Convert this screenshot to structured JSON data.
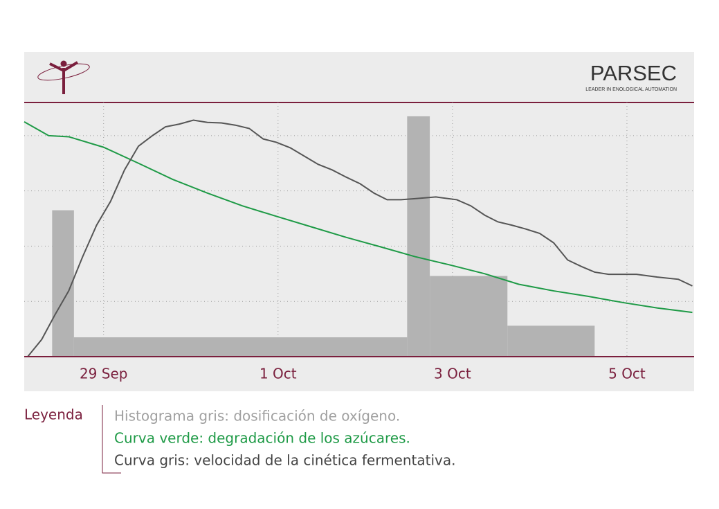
{
  "header": {
    "brand": "PARSEC",
    "tagline": "LEADER IN ENOLOGICAL AUTOMATION"
  },
  "chart_data": {
    "type": "line",
    "xlim": [
      -0.91,
      6.77
    ],
    "xticks": [
      {
        "value": 0,
        "label": "29 Sep"
      },
      {
        "value": 2,
        "label": "1 Oct"
      },
      {
        "value": 4,
        "label": "3 Oct"
      },
      {
        "value": 6,
        "label": "5 Oct"
      }
    ],
    "ylim": [
      0,
      4.6
    ],
    "ygrid": [
      1,
      2,
      3,
      4
    ],
    "legend_title": "Leyenda",
    "series": [
      {
        "name": "Histograma gris: dosificación de oxígeno.",
        "type": "histogram",
        "color": "#b3b3b3",
        "bins": [
          -0.59,
          -0.34,
          3.48,
          3.74,
          4.63,
          5.63
        ],
        "values": [
          2.65,
          0.35,
          4.35,
          1.46,
          0.56
        ]
      },
      {
        "name": "Curva verde: degradación de los azúcares.",
        "type": "line",
        "color": "#1e9a46",
        "x": [
          -0.91,
          -0.63,
          -0.4,
          0,
          0.4,
          0.79,
          1.19,
          1.59,
          1.98,
          2.38,
          2.78,
          3.17,
          3.57,
          3.97,
          4.37,
          4.76,
          5.16,
          5.56,
          5.95,
          6.35,
          6.75
        ],
        "values": [
          4.25,
          4.0,
          3.98,
          3.79,
          3.5,
          3.21,
          2.96,
          2.73,
          2.54,
          2.35,
          2.16,
          1.99,
          1.81,
          1.66,
          1.5,
          1.31,
          1.19,
          1.09,
          0.98,
          0.88,
          0.8
        ]
      },
      {
        "name": "Curva gris: velocidad de la cinética fermentativa.",
        "type": "line",
        "color": "#555555",
        "x": [
          -0.87,
          -0.71,
          -0.56,
          -0.4,
          -0.24,
          -0.08,
          0.08,
          0.24,
          0.4,
          0.56,
          0.71,
          0.87,
          1.03,
          1.19,
          1.35,
          1.51,
          1.67,
          1.83,
          1.98,
          2.14,
          2.3,
          2.46,
          2.62,
          2.78,
          2.94,
          3.1,
          3.25,
          3.41,
          3.57,
          3.81,
          4.05,
          4.21,
          4.37,
          4.52,
          4.68,
          4.84,
          5.0,
          5.16,
          5.32,
          5.48,
          5.63,
          5.79,
          6.11,
          6.35,
          6.59,
          6.75
        ],
        "values": [
          0,
          0.31,
          0.75,
          1.19,
          1.81,
          2.38,
          2.81,
          3.38,
          3.81,
          4.0,
          4.16,
          4.21,
          4.28,
          4.24,
          4.23,
          4.19,
          4.13,
          3.94,
          3.88,
          3.78,
          3.63,
          3.48,
          3.38,
          3.25,
          3.13,
          2.96,
          2.84,
          2.84,
          2.86,
          2.89,
          2.84,
          2.73,
          2.56,
          2.44,
          2.38,
          2.31,
          2.23,
          2.06,
          1.75,
          1.63,
          1.53,
          1.49,
          1.49,
          1.44,
          1.4,
          1.28
        ]
      }
    ]
  }
}
